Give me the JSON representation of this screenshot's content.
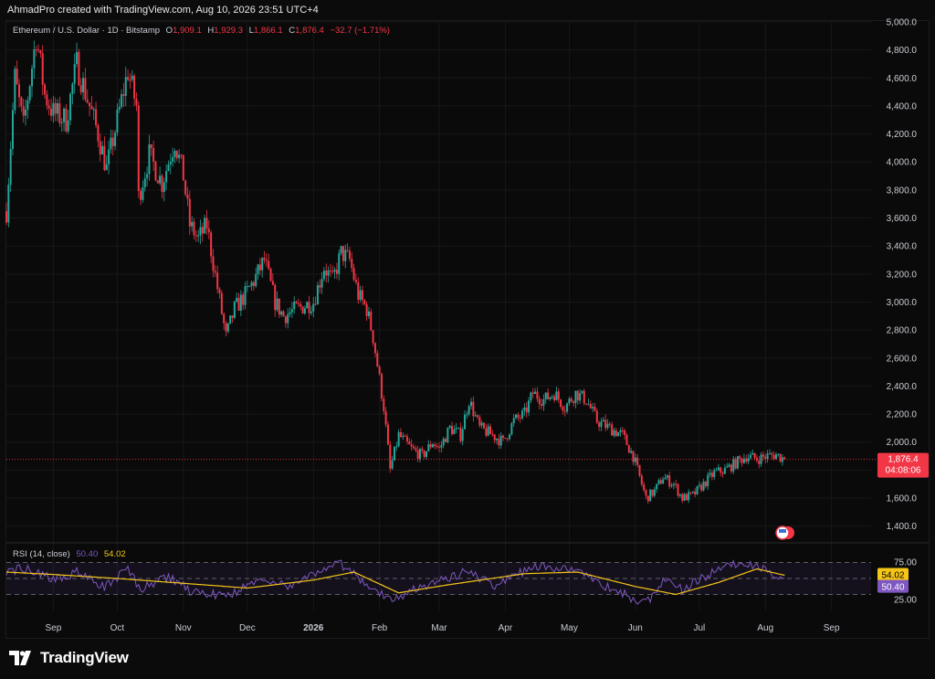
{
  "header": {
    "caption": "AhmadPro created with TradingView.com, Aug 10, 2026 23:51 UTC+4"
  },
  "legend": {
    "symbol": "Ethereum / U.S. Dollar · 1D · Bitstamp",
    "open_label": "O",
    "open": "1,909.1",
    "high_label": "H",
    "high": "1,929.3",
    "low_label": "L",
    "low": "1,866.1",
    "close_label": "C",
    "close": "1,876.4",
    "change": "−32.7 (−1.71%)"
  },
  "price_tag": {
    "price": "1,876.4",
    "countdown": "04:08:06"
  },
  "rsi_legend": {
    "label": "RSI (14, close)",
    "rsi": "50.40",
    "ma": "54.02"
  },
  "colors": {
    "up": "#26a69a",
    "down": "#f23645",
    "rsi": "#7e57c2",
    "rsi_ma": "#f5c518",
    "background": "#0b0b0c"
  },
  "footer": {
    "brand": "TradingView",
    "logo_icon": "tradingview-logo-icon"
  },
  "chart_data": [
    {
      "type": "candlestick",
      "title": "Ethereum / U.S. Dollar · 1D · Bitstamp",
      "y_axis_side": "right",
      "ylim": [
        1300,
        5000
      ],
      "y_ticks": [
        1400,
        1600,
        1800,
        2000,
        2200,
        2400,
        2600,
        2800,
        3000,
        3200,
        3400,
        3600,
        3800,
        4000,
        4200,
        4400,
        4600,
        4800,
        5000
      ],
      "y_tick_labels": [
        "1,400.0",
        "1,600.0",
        "1,800.0",
        "2,000.0",
        "2,200.0",
        "2,400.0",
        "2,600.0",
        "2,800.0",
        "3,000.0",
        "3,200.0",
        "3,400.0",
        "3,600.0",
        "3,800.0",
        "4,000.0",
        "4,200.0",
        "4,400.0",
        "4,600.0",
        "4,800.0",
        "5,000.0"
      ],
      "x_ticks": [
        {
          "label": "Sep",
          "date": "2025-09-01"
        },
        {
          "label": "Oct",
          "date": "2025-10-01"
        },
        {
          "label": "Nov",
          "date": "2025-11-01"
        },
        {
          "label": "Dec",
          "date": "2025-12-01"
        },
        {
          "label": "2026",
          "date": "2026-01-01"
        },
        {
          "label": "Feb",
          "date": "2026-02-01"
        },
        {
          "label": "Mar",
          "date": "2026-03-01"
        },
        {
          "label": "Apr",
          "date": "2026-04-01"
        },
        {
          "label": "May",
          "date": "2026-05-01"
        },
        {
          "label": "Jun",
          "date": "2026-06-01"
        },
        {
          "label": "Jul",
          "date": "2026-07-01"
        },
        {
          "label": "Aug",
          "date": "2026-08-01"
        },
        {
          "label": "Sep",
          "date": "2026-09-01"
        }
      ],
      "xlim": [
        "2025-08-10",
        "2026-09-20"
      ],
      "close_path": [
        {
          "date": "2025-08-10",
          "close": 3650
        },
        {
          "date": "2025-08-14",
          "close": 4600
        },
        {
          "date": "2025-08-18",
          "close": 4250
        },
        {
          "date": "2025-08-24",
          "close": 4900
        },
        {
          "date": "2025-08-28",
          "close": 4480
        },
        {
          "date": "2025-09-01",
          "close": 4350
        },
        {
          "date": "2025-09-07",
          "close": 4300
        },
        {
          "date": "2025-09-12",
          "close": 4700
        },
        {
          "date": "2025-09-16",
          "close": 4500
        },
        {
          "date": "2025-09-22",
          "close": 4200
        },
        {
          "date": "2025-09-26",
          "close": 3950
        },
        {
          "date": "2025-10-01",
          "close": 4300
        },
        {
          "date": "2025-10-06",
          "close": 4650
        },
        {
          "date": "2025-10-10",
          "close": 4400
        },
        {
          "date": "2025-10-11",
          "close": 3750
        },
        {
          "date": "2025-10-16",
          "close": 4050
        },
        {
          "date": "2025-10-22",
          "close": 3850
        },
        {
          "date": "2025-10-28",
          "close": 4150
        },
        {
          "date": "2025-11-01",
          "close": 3900
        },
        {
          "date": "2025-11-04",
          "close": 3550
        },
        {
          "date": "2025-11-08",
          "close": 3450
        },
        {
          "date": "2025-11-12",
          "close": 3550
        },
        {
          "date": "2025-11-17",
          "close": 3100
        },
        {
          "date": "2025-11-21",
          "close": 2750
        },
        {
          "date": "2025-11-25",
          "close": 2950
        },
        {
          "date": "2025-11-30",
          "close": 3050
        },
        {
          "date": "2025-12-04",
          "close": 3150
        },
        {
          "date": "2025-12-09",
          "close": 3300
        },
        {
          "date": "2025-12-14",
          "close": 3000
        },
        {
          "date": "2025-12-18",
          "close": 2900
        },
        {
          "date": "2025-12-24",
          "close": 2950
        },
        {
          "date": "2026-01-01",
          "close": 3000
        },
        {
          "date": "2026-01-06",
          "close": 3250
        },
        {
          "date": "2026-01-10",
          "close": 3150
        },
        {
          "date": "2026-01-14",
          "close": 3350
        },
        {
          "date": "2026-01-18",
          "close": 3300
        },
        {
          "date": "2026-01-22",
          "close": 3050
        },
        {
          "date": "2026-01-26",
          "close": 2950
        },
        {
          "date": "2026-01-29",
          "close": 2750
        },
        {
          "date": "2026-02-01",
          "close": 2450
        },
        {
          "date": "2026-02-03",
          "close": 2250
        },
        {
          "date": "2026-02-06",
          "close": 1800
        },
        {
          "date": "2026-02-10",
          "close": 2050
        },
        {
          "date": "2026-02-16",
          "close": 1950
        },
        {
          "date": "2026-02-21",
          "close": 1900
        },
        {
          "date": "2026-02-26",
          "close": 2000
        },
        {
          "date": "2026-03-01",
          "close": 1950
        },
        {
          "date": "2026-03-06",
          "close": 2100
        },
        {
          "date": "2026-03-11",
          "close": 2050
        },
        {
          "date": "2026-03-15",
          "close": 2300
        },
        {
          "date": "2026-03-20",
          "close": 2100
        },
        {
          "date": "2026-03-26",
          "close": 2050
        },
        {
          "date": "2026-03-31",
          "close": 2000
        },
        {
          "date": "2026-04-05",
          "close": 2150
        },
        {
          "date": "2026-04-10",
          "close": 2200
        },
        {
          "date": "2026-04-14",
          "close": 2350
        },
        {
          "date": "2026-04-19",
          "close": 2300
        },
        {
          "date": "2026-04-24",
          "close": 2350
        },
        {
          "date": "2026-04-29",
          "close": 2250
        },
        {
          "date": "2026-05-04",
          "close": 2350
        },
        {
          "date": "2026-05-09",
          "close": 2300
        },
        {
          "date": "2026-05-14",
          "close": 2150
        },
        {
          "date": "2026-05-20",
          "close": 2100
        },
        {
          "date": "2026-05-26",
          "close": 2050
        },
        {
          "date": "2026-05-31",
          "close": 1900
        },
        {
          "date": "2026-06-03",
          "close": 1750
        },
        {
          "date": "2026-06-06",
          "close": 1600
        },
        {
          "date": "2026-06-10",
          "close": 1650
        },
        {
          "date": "2026-06-14",
          "close": 1750
        },
        {
          "date": "2026-06-19",
          "close": 1700
        },
        {
          "date": "2026-06-23",
          "close": 1600
        },
        {
          "date": "2026-06-28",
          "close": 1620
        },
        {
          "date": "2026-07-03",
          "close": 1700
        },
        {
          "date": "2026-07-08",
          "close": 1780
        },
        {
          "date": "2026-07-13",
          "close": 1800
        },
        {
          "date": "2026-07-18",
          "close": 1850
        },
        {
          "date": "2026-07-23",
          "close": 1900
        },
        {
          "date": "2026-07-28",
          "close": 1880
        },
        {
          "date": "2026-08-02",
          "close": 1900
        },
        {
          "date": "2026-08-06",
          "close": 1910
        },
        {
          "date": "2026-08-10",
          "close": 1876.4
        }
      ],
      "last_price": 1876.4
    },
    {
      "type": "line",
      "title": "RSI (14, close)",
      "ylim": [
        10,
        90
      ],
      "y_tick_labels": [
        "75.00",
        "25.00"
      ],
      "bands": {
        "upper": 70,
        "middle": 50,
        "lower": 30
      },
      "series": [
        {
          "name": "RSI",
          "values": [
            {
              "date": "2025-08-10",
              "value": 60
            },
            {
              "date": "2025-08-20",
              "value": 63
            },
            {
              "date": "2025-09-01",
              "value": 48
            },
            {
              "date": "2025-09-12",
              "value": 58
            },
            {
              "date": "2025-09-25",
              "value": 38
            },
            {
              "date": "2025-10-06",
              "value": 62
            },
            {
              "date": "2025-10-12",
              "value": 36
            },
            {
              "date": "2025-10-25",
              "value": 52
            },
            {
              "date": "2025-11-05",
              "value": 33
            },
            {
              "date": "2025-11-21",
              "value": 28
            },
            {
              "date": "2025-12-08",
              "value": 50
            },
            {
              "date": "2025-12-20",
              "value": 40
            },
            {
              "date": "2026-01-06",
              "value": 62
            },
            {
              "date": "2026-01-14",
              "value": 68
            },
            {
              "date": "2026-01-29",
              "value": 38
            },
            {
              "date": "2026-02-06",
              "value": 22
            },
            {
              "date": "2026-02-20",
              "value": 40
            },
            {
              "date": "2026-03-15",
              "value": 60
            },
            {
              "date": "2026-03-26",
              "value": 40
            },
            {
              "date": "2026-04-14",
              "value": 65
            },
            {
              "date": "2026-05-04",
              "value": 62
            },
            {
              "date": "2026-05-20",
              "value": 38
            },
            {
              "date": "2026-06-06",
              "value": 18
            },
            {
              "date": "2026-06-14",
              "value": 48
            },
            {
              "date": "2026-06-23",
              "value": 36
            },
            {
              "date": "2026-07-13",
              "value": 65
            },
            {
              "date": "2026-07-23",
              "value": 70
            },
            {
              "date": "2026-08-02",
              "value": 58
            },
            {
              "date": "2026-08-10",
              "value": 50.4
            }
          ]
        },
        {
          "name": "RSI MA",
          "values": [
            {
              "date": "2025-08-10",
              "value": 58
            },
            {
              "date": "2025-09-01",
              "value": 55
            },
            {
              "date": "2025-10-01",
              "value": 50
            },
            {
              "date": "2025-11-01",
              "value": 44
            },
            {
              "date": "2025-12-01",
              "value": 38
            },
            {
              "date": "2026-01-01",
              "value": 48
            },
            {
              "date": "2026-01-20",
              "value": 58
            },
            {
              "date": "2026-02-10",
              "value": 32
            },
            {
              "date": "2026-03-05",
              "value": 42
            },
            {
              "date": "2026-04-10",
              "value": 56
            },
            {
              "date": "2026-05-05",
              "value": 58
            },
            {
              "date": "2026-06-01",
              "value": 40
            },
            {
              "date": "2026-06-20",
              "value": 30
            },
            {
              "date": "2026-07-10",
              "value": 45
            },
            {
              "date": "2026-07-28",
              "value": 62
            },
            {
              "date": "2026-08-10",
              "value": 54.02
            }
          ]
        }
      ]
    }
  ]
}
